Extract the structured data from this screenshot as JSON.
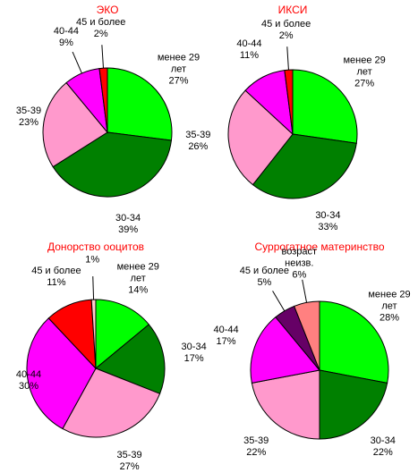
{
  "chart_data": [
    {
      "type": "pie",
      "title": "ЭКО",
      "categories": [
        "менее 29 лет",
        "30-34",
        "35-39",
        "40-44",
        "45 и более"
      ],
      "values": [
        27,
        39,
        23,
        9,
        2
      ],
      "value_labels": [
        "27%",
        "39%",
        "23%",
        "9%",
        "2%"
      ],
      "colors": [
        "#00ff00",
        "#008000",
        "#ff99cc",
        "#ff00ff",
        "#ff0000"
      ]
    },
    {
      "type": "pie",
      "title": "ИКСИ",
      "categories": [
        "менее 29 лет",
        "30-34",
        "35-39",
        "40-44",
        "45 и более"
      ],
      "values": [
        27,
        33,
        26,
        11,
        2
      ],
      "value_labels": [
        "27%",
        "33%",
        "26%",
        "11%",
        "2%"
      ],
      "colors": [
        "#00ff00",
        "#008000",
        "#ff99cc",
        "#ff00ff",
        "#ff0000"
      ]
    },
    {
      "type": "pie",
      "title": "Донорство ооцитов",
      "categories": [
        "менее 29 лет",
        "30-34",
        "35-39",
        "40-44",
        "45 и более",
        null
      ],
      "values": [
        14,
        17,
        27,
        30,
        11,
        1
      ],
      "value_labels": [
        "14%",
        "17%",
        "27%",
        "30%",
        "11%",
        "1%"
      ],
      "colors": [
        "#00ff00",
        "#008000",
        "#ff99cc",
        "#ff00ff",
        "#ff0000",
        "#ffcccc"
      ]
    },
    {
      "type": "pie",
      "title": "Суррогатное материнство",
      "categories": [
        "менее 29 лет",
        "30-34",
        "35-39",
        "40-44",
        "45 и более",
        "возраст неизв."
      ],
      "values": [
        28,
        22,
        22,
        17,
        5,
        6
      ],
      "value_labels": [
        "28%",
        "22%",
        "22%",
        "17%",
        "5%",
        "6%"
      ],
      "colors": [
        "#00ff00",
        "#008000",
        "#ff99cc",
        "#ff00ff",
        "#660066",
        "#ff8080"
      ]
    }
  ]
}
